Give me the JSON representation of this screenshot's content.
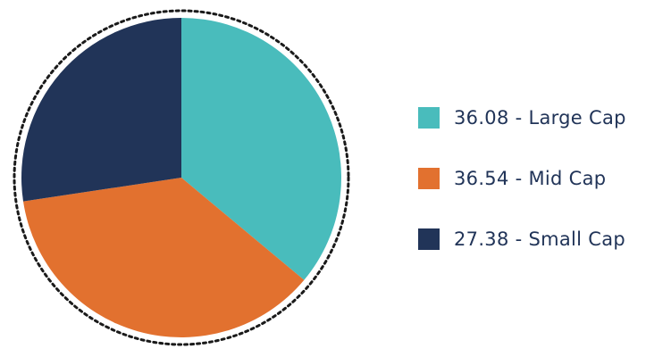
{
  "chart_data": {
    "type": "pie",
    "title": "",
    "slices": [
      {
        "label": "Large Cap",
        "value": 36.08,
        "legend": "36.08 - Large Cap",
        "color": "#49bcbc"
      },
      {
        "label": "Mid Cap",
        "value": 36.54,
        "legend": "36.54 - Mid Cap",
        "color": "#e2712f"
      },
      {
        "label": "Small Cap",
        "value": 27.38,
        "legend": "27.38 - Small Cap",
        "color": "#213458"
      }
    ],
    "start_angle_deg": 0,
    "direction": "clockwise",
    "outline": "dotted circle",
    "legend_position": "right"
  }
}
